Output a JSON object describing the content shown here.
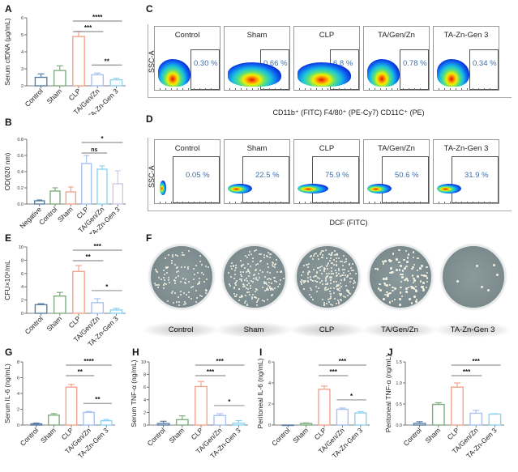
{
  "panel_letters": [
    "A",
    "B",
    "C",
    "D",
    "E",
    "F",
    "G",
    "H",
    "I",
    "J"
  ],
  "colors": {
    "Negative": "#5a7fa6",
    "Control": "#5a7fa6",
    "Sham": "#7fad7f",
    "CLP": "#f2a58e",
    "TA/Gen/Zn": "#a9c2ef",
    "TA-Zn-Gen 3": "#8fd3ee",
    "TA-Zn-Gen 3 (B)": "#d6c4ea",
    "TA/Gen/Zn (B)": "#8fd3ee",
    "CLP (B)": "#a9c2ef",
    "Sham (B)": "#f2a58e",
    "Control (B)": "#7fad7f",
    "pct_text": "#3b6fb0"
  },
  "chart_data": [
    {
      "id": "A",
      "type": "bar",
      "title": "",
      "xlabel": "",
      "ylabel": "Serum cfDNA (μg/mL)",
      "categories": [
        "Control",
        "Sham",
        "CLP",
        "TA/Gen/Zn",
        "TA-Zn-Gen 3"
      ],
      "values": [
        2.5,
        2.9,
        4.9,
        2.65,
        2.35
      ],
      "errors": [
        0.2,
        0.28,
        0.3,
        0.1,
        0.1
      ],
      "ylim": [
        2,
        6
      ],
      "yticks": [
        "2",
        "3",
        "4",
        "5",
        "6"
      ],
      "ytick_values": [
        2,
        3,
        4,
        5,
        6
      ],
      "significance": [
        {
          "from": 2,
          "to": 4,
          "label": "****"
        },
        {
          "from": 2,
          "to": 3,
          "label": "***"
        },
        {
          "from": 3,
          "to": 4,
          "label": "**"
        }
      ]
    },
    {
      "id": "B",
      "type": "bar",
      "title": "",
      "xlabel": "",
      "ylabel": "OD(620 nm)",
      "categories": [
        "Negative",
        "Control",
        "Sham",
        "CLP",
        "TA/Gen/Zn",
        "TA-Zn-Gen 3"
      ],
      "values": [
        0.04,
        0.16,
        0.15,
        0.5,
        0.43,
        0.25
      ],
      "errors": [
        0.01,
        0.04,
        0.06,
        0.1,
        0.04,
        0.16
      ],
      "ylim": [
        0,
        0.8
      ],
      "yticks": [
        "0.0",
        "0.2",
        "0.4",
        "0.6",
        "0.8"
      ],
      "ytick_values": [
        0,
        0.2,
        0.4,
        0.6,
        0.8
      ],
      "significance": [
        {
          "from": 3,
          "to": 5,
          "label": "*"
        },
        {
          "from": 3,
          "to": 4,
          "label": "ns"
        }
      ]
    },
    {
      "id": "E",
      "type": "bar",
      "title": "",
      "xlabel": "",
      "ylabel": "CFU×10⁶/mL",
      "categories": [
        "Control",
        "Sham",
        "CLP",
        "TA/Gen/Zn",
        "TA-Zn-Gen 3"
      ],
      "values": [
        1.3,
        2.6,
        6.3,
        1.6,
        0.5
      ],
      "errors": [
        0.15,
        0.55,
        0.9,
        0.6,
        0.25
      ],
      "ylim": [
        0,
        10
      ],
      "yticks": [
        "0",
        "2",
        "4",
        "6",
        "8",
        "10"
      ],
      "ytick_values": [
        0,
        2,
        4,
        6,
        8,
        10
      ],
      "significance": [
        {
          "from": 2,
          "to": 4,
          "label": "***"
        },
        {
          "from": 2,
          "to": 3,
          "label": "**"
        },
        {
          "from": 3,
          "to": 4,
          "label": "*"
        }
      ]
    },
    {
      "id": "G",
      "type": "bar",
      "title": "",
      "xlabel": "",
      "ylabel": "Serum IL-6 (ng/mL)",
      "categories": [
        "Control",
        "Sham",
        "CLP",
        "TA/Gen/Zn",
        "TA-Zn-Gen 3"
      ],
      "values": [
        0.15,
        1.25,
        4.8,
        1.6,
        0.55
      ],
      "errors": [
        0.1,
        0.2,
        0.35,
        0.12,
        0.15
      ],
      "ylim": [
        0,
        8
      ],
      "yticks": [
        "0",
        "2",
        "4",
        "6",
        "8"
      ],
      "ytick_values": [
        0,
        2,
        4,
        6,
        8
      ],
      "significance": [
        {
          "from": 2,
          "to": 4,
          "label": "****"
        },
        {
          "from": 2,
          "to": 3,
          "label": "**"
        },
        {
          "from": 3,
          "to": 4,
          "label": "**"
        }
      ]
    },
    {
      "id": "H",
      "type": "bar",
      "title": "",
      "xlabel": "",
      "ylabel": "Serum TNF-α (ng/mL)",
      "categories": [
        "Control",
        "Sham",
        "CLP",
        "TA/Gen/Zn",
        "TA-Zn-Gen 3"
      ],
      "values": [
        0.25,
        0.85,
        6.1,
        1.5,
        0.3
      ],
      "errors": [
        0.35,
        0.6,
        0.8,
        0.3,
        0.4
      ],
      "ylim": [
        0,
        10
      ],
      "yticks": [
        "0",
        "2",
        "4",
        "6",
        "8",
        "10"
      ],
      "ytick_values": [
        0,
        2,
        4,
        6,
        8,
        10
      ],
      "significance": [
        {
          "from": 2,
          "to": 4,
          "label": "***"
        },
        {
          "from": 2,
          "to": 3,
          "label": "***"
        },
        {
          "from": 3,
          "to": 4,
          "label": "*"
        }
      ]
    },
    {
      "id": "I",
      "type": "bar",
      "title": "",
      "xlabel": "",
      "ylabel": "Peritoneal IL-6 (ng/mL)",
      "categories": [
        "Control",
        "Sham",
        "CLP",
        "TA/Gen/Zn",
        "TA-Zn-Gen 3"
      ],
      "values": [
        0.0,
        0.15,
        3.4,
        1.5,
        1.15
      ],
      "errors": [
        0.0,
        0.05,
        0.3,
        0.12,
        0.12
      ],
      "ylim": [
        0,
        6
      ],
      "yticks": [
        "0",
        "2",
        "4",
        "6"
      ],
      "ytick_values": [
        0,
        2,
        4,
        6
      ],
      "significance": [
        {
          "from": 2,
          "to": 4,
          "label": "***"
        },
        {
          "from": 2,
          "to": 3,
          "label": "***"
        },
        {
          "from": 3,
          "to": 4,
          "label": "*"
        }
      ]
    },
    {
      "id": "J",
      "type": "bar",
      "title": "",
      "xlabel": "",
      "ylabel": "Peritoneal TNF-α (ng/mL)",
      "categories": [
        "Control",
        "Sham",
        "CLP",
        "TA/Gen/Zn",
        "TA-Zn-Gen 3"
      ],
      "values": [
        0.04,
        0.49,
        0.9,
        0.28,
        0.26
      ],
      "errors": [
        0.04,
        0.04,
        0.1,
        0.07,
        0.01
      ],
      "ylim": [
        0,
        1.5
      ],
      "yticks": [
        "0.0",
        "0.5",
        "1.0",
        "1.5"
      ],
      "ytick_values": [
        0,
        0.5,
        1.0,
        1.5
      ],
      "significance": [
        {
          "from": 2,
          "to": 4,
          "label": "***"
        },
        {
          "from": 2,
          "to": 3,
          "label": "***"
        }
      ]
    }
  ],
  "flow_C": {
    "ylabel": "SSC-A",
    "xlabel": "CD11b⁺ (FITC) F4/80⁺ (PE-Cy7) CD11C⁺ (PE)",
    "groups": [
      {
        "name": "Control",
        "percent": "0.30 %"
      },
      {
        "name": "Sham",
        "percent": "0.66 %"
      },
      {
        "name": "CLP",
        "percent": "6.8 %"
      },
      {
        "name": "TA/Gen/Zn",
        "percent": "0.78 %"
      },
      {
        "name": "TA-Zn-Gen 3",
        "percent": "0.34 %"
      }
    ]
  },
  "flow_D": {
    "ylabel": "SSC-A",
    "xlabel": "DCF (FITC)",
    "groups": [
      {
        "name": "Control",
        "percent": "0.05 %"
      },
      {
        "name": "Sham",
        "percent": "22.5 %"
      },
      {
        "name": "CLP",
        "percent": "75.9 %"
      },
      {
        "name": "TA/Gen/Zn",
        "percent": "50.6 %"
      },
      {
        "name": "TA-Zn-Gen 3",
        "percent": "31.9 %"
      }
    ]
  },
  "plates_F": {
    "groups": [
      {
        "name": "Control",
        "colony_density": "moderate"
      },
      {
        "name": "Sham",
        "colony_density": "high"
      },
      {
        "name": "CLP",
        "colony_density": "very high"
      },
      {
        "name": "TA/Gen/Zn",
        "colony_density": "moderate"
      },
      {
        "name": "TA-Zn-Gen 3",
        "colony_density": "very low"
      }
    ]
  }
}
